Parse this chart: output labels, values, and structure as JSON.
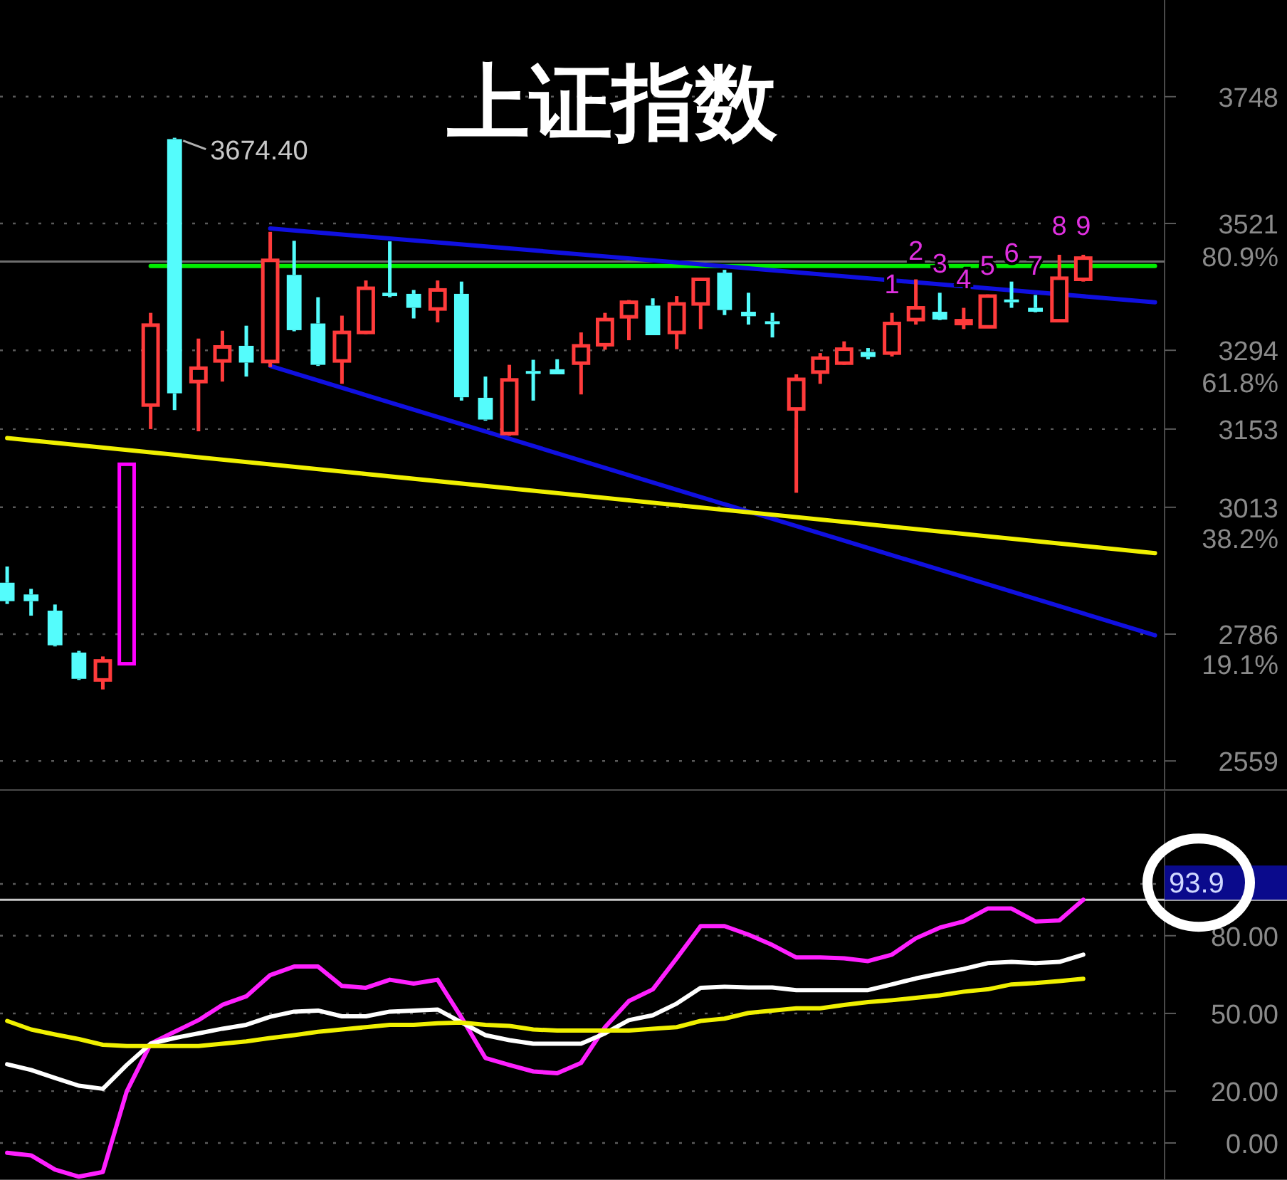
{
  "chart_data": [
    {
      "type": "candlestick",
      "title": "上证指数",
      "categories": [
        null,
        null,
        null,
        null,
        null,
        null,
        null,
        null,
        null,
        null,
        null,
        null,
        null,
        null,
        null,
        null,
        null,
        null,
        null,
        null,
        null,
        null,
        null,
        null,
        null,
        null,
        null,
        null,
        null,
        null,
        null,
        null,
        null,
        null,
        null,
        null,
        null,
        null,
        null,
        null,
        null,
        null,
        null,
        null,
        null,
        null,
        null,
        null,
        null
      ],
      "ohlc": [
        [
          2878,
          2907,
          2840,
          2845
        ],
        [
          2857,
          2867,
          2819,
          2845
        ],
        [
          2828,
          2839,
          2764,
          2766
        ],
        [
          2753,
          2756,
          2704,
          2706
        ],
        [
          2704,
          2746,
          2687,
          2738
        ],
        [
          2733,
          3090,
          2733,
          3090
        ],
        [
          3196,
          3361,
          3153,
          3339
        ],
        [
          3672,
          3674.4,
          3187,
          3217
        ],
        [
          3238,
          3315,
          3149,
          3262
        ],
        [
          3275,
          3329,
          3238,
          3300
        ],
        [
          3302,
          3338,
          3247,
          3272
        ],
        [
          3274,
          3506,
          3264,
          3455
        ],
        [
          3429,
          3490,
          3328,
          3330
        ],
        [
          3342,
          3389,
          3266,
          3268
        ],
        [
          3275,
          3356,
          3234,
          3326
        ],
        [
          3326,
          3419,
          3323,
          3405
        ],
        [
          3397,
          3489,
          3389,
          3391
        ],
        [
          3395,
          3402,
          3351,
          3370
        ],
        [
          3368,
          3419,
          3344,
          3402
        ],
        [
          3395,
          3417,
          3204,
          3210
        ],
        [
          3209,
          3247,
          3168,
          3170
        ],
        [
          3145,
          3268,
          3141,
          3241
        ],
        [
          3257,
          3277,
          3204,
          3254
        ],
        [
          3260,
          3278,
          3251,
          3251
        ],
        [
          3271,
          3326,
          3215,
          3302
        ],
        [
          3304,
          3361,
          3295,
          3349
        ],
        [
          3354,
          3384,
          3312,
          3380
        ],
        [
          3374,
          3387,
          3321,
          3321
        ],
        [
          3326,
          3391,
          3296,
          3377
        ],
        [
          3377,
          3422,
          3332,
          3421
        ],
        [
          3433,
          3438,
          3357,
          3366
        ],
        [
          3363,
          3397,
          3340,
          3355
        ],
        [
          3346,
          3361,
          3317,
          3342
        ],
        [
          3189,
          3251,
          3039,
          3242
        ],
        [
          3255,
          3289,
          3234,
          3280
        ],
        [
          3271,
          3310,
          3268,
          3296
        ],
        [
          3291,
          3298,
          3278,
          3282
        ],
        [
          3289,
          3361,
          3283,
          3342
        ],
        [
          3349,
          3421,
          3340,
          3370
        ],
        [
          3363,
          3397,
          3348,
          3349
        ],
        [
          3344,
          3370,
          3332,
          3347
        ],
        [
          3336,
          3394,
          3335,
          3391
        ],
        [
          3385,
          3417,
          3370,
          3380
        ],
        [
          3370,
          3393,
          3362,
          3363
        ],
        [
          3347,
          3465,
          3344,
          3423
        ],
        [
          3421,
          3465,
          3417,
          3459
        ],
        null,
        null,
        null
      ],
      "colors": [
        "#54fcfc",
        "#54fcfc",
        "#54fcfc",
        "#54fcfc",
        "#ff3b3b",
        "#ff00ff",
        "#ff3b3b",
        "#54fcfc",
        "#ff3b3b",
        "#ff3b3b",
        "#54fcfc",
        "#ff3b3b",
        "#54fcfc",
        "#54fcfc",
        "#ff3b3b",
        "#ff3b3b",
        "#54fcfc",
        "#54fcfc",
        "#ff3b3b",
        "#54fcfc",
        "#54fcfc",
        "#ff3b3b",
        "#54fcfc",
        "#54fcfc",
        "#ff3b3b",
        "#ff3b3b",
        "#ff3b3b",
        "#54fcfc",
        "#ff3b3b",
        "#ff3b3b",
        "#54fcfc",
        "#54fcfc",
        "#54fcfc",
        "#ff3b3b",
        "#ff3b3b",
        "#ff3b3b",
        "#54fcfc",
        "#ff3b3b",
        "#ff3b3b",
        "#54fcfc",
        "#ff3b3b",
        "#ff3b3b",
        "#54fcfc",
        "#54fcfc",
        "#ff3b3b",
        "#ff3b3b",
        null,
        null,
        null
      ],
      "value_labels": [
        null,
        null,
        null,
        null,
        null,
        null,
        null,
        null,
        null,
        null,
        null,
        null,
        null,
        null,
        null,
        null,
        null,
        null,
        null,
        null,
        null,
        null,
        null,
        null,
        null,
        null,
        null,
        null,
        null,
        null,
        null,
        null,
        null,
        null,
        null,
        null,
        null,
        "1",
        "2",
        "3",
        "4",
        "5",
        "6",
        "7",
        "8",
        "9",
        null,
        null,
        null
      ],
      "series": [
        {
          "type": "line",
          "color": "#00ee00",
          "values": [
            null,
            null,
            null,
            null,
            null,
            null,
            3445,
            null,
            null,
            null,
            null,
            null,
            null,
            null,
            null,
            null,
            null,
            null,
            null,
            null,
            null,
            null,
            null,
            null,
            null,
            null,
            null,
            null,
            null,
            null,
            null,
            null,
            null,
            null,
            null,
            null,
            null,
            null,
            null,
            null,
            null,
            null,
            null,
            null,
            null,
            null,
            null,
            null,
            3445
          ]
        },
        {
          "type": "line",
          "color": "#1010e0",
          "values": [
            null,
            null,
            null,
            null,
            null,
            null,
            null,
            null,
            null,
            null,
            null,
            3512,
            null,
            null,
            null,
            null,
            null,
            null,
            null,
            null,
            null,
            null,
            null,
            null,
            null,
            null,
            null,
            null,
            null,
            null,
            null,
            null,
            null,
            null,
            null,
            null,
            null,
            null,
            null,
            null,
            null,
            null,
            null,
            null,
            null,
            null,
            null,
            null,
            3380
          ]
        },
        {
          "type": "line",
          "color": "#1010e0",
          "values": [
            null,
            null,
            null,
            null,
            null,
            null,
            null,
            null,
            null,
            null,
            null,
            3266,
            null,
            null,
            null,
            null,
            null,
            null,
            null,
            null,
            null,
            null,
            null,
            null,
            null,
            null,
            null,
            null,
            null,
            null,
            null,
            null,
            null,
            null,
            null,
            null,
            null,
            null,
            null,
            null,
            null,
            null,
            null,
            null,
            null,
            null,
            null,
            null,
            2784
          ]
        },
        {
          "type": "line",
          "color": "#f0f000",
          "values": [
            3137,
            null,
            null,
            null,
            null,
            null,
            null,
            null,
            null,
            null,
            null,
            null,
            null,
            null,
            null,
            null,
            null,
            null,
            null,
            null,
            null,
            null,
            null,
            null,
            null,
            null,
            null,
            null,
            null,
            null,
            null,
            null,
            null,
            null,
            null,
            null,
            null,
            null,
            null,
            null,
            null,
            null,
            null,
            null,
            null,
            null,
            null,
            null,
            2931
          ]
        }
      ],
      "ylim": [
        2507,
        3921
      ],
      "yticks": [
        3748,
        3521,
        3294,
        3153,
        3013,
        2786,
        2559
      ],
      "y2lim": [
        0,
        119.7
      ],
      "y2ticks": [
        {
          "value": 80.9,
          "label": "80.9%"
        },
        {
          "value": 61.8,
          "label": "61.8%"
        },
        {
          "value": 38.2,
          "label": "38.2%"
        },
        {
          "value": 19.1,
          "label": "19.1%"
        }
      ],
      "grid": "y",
      "ref_lines": [
        {
          "axis": "y",
          "value": 3453,
          "color": "#6e6e6e"
        }
      ],
      "annotations": [
        "3674.40"
      ]
    },
    {
      "type": "line",
      "categories": [
        null,
        null,
        null,
        null,
        null,
        null,
        null,
        null,
        null,
        null,
        null,
        null,
        null,
        null,
        null,
        null,
        null,
        null,
        null,
        null,
        null,
        null,
        null,
        null,
        null,
        null,
        null,
        null,
        null,
        null,
        null,
        null,
        null,
        null,
        null,
        null,
        null,
        null,
        null,
        null,
        null,
        null,
        null,
        null,
        null,
        null,
        null,
        null,
        null
      ],
      "series": [
        {
          "color": "#ff20ff",
          "values": [
            -3.8,
            -4.8,
            -10.3,
            -13,
            -11.2,
            19.9,
            38.3,
            42.9,
            47.4,
            53.3,
            56.6,
            64.8,
            68.1,
            68.1,
            60.6,
            59.9,
            63,
            61.5,
            63,
            48.4,
            32.8,
            30.1,
            27.6,
            26.9,
            30.9,
            44.7,
            54.8,
            59.3,
            71.3,
            83.7,
            83.7,
            80.4,
            76.4,
            71.6,
            71.6,
            71.3,
            70.2,
            72.7,
            79,
            83.1,
            85.5,
            90.5,
            90.5,
            85.5,
            85.9,
            93.9,
            null,
            null,
            null
          ]
        },
        {
          "color": "#ffffff",
          "values": [
            30.4,
            28.2,
            25.1,
            22.1,
            20.9,
            30.1,
            38.3,
            40.5,
            42.3,
            44.1,
            45.6,
            48.7,
            50.7,
            51.1,
            48.9,
            48.9,
            50.7,
            51.1,
            51.5,
            46.5,
            41.6,
            39.7,
            38.3,
            38.3,
            38.3,
            42.3,
            47.4,
            49.3,
            53.8,
            59.9,
            60.3,
            60,
            60,
            59,
            59,
            59,
            59,
            61.2,
            63.5,
            65.4,
            67.2,
            69.4,
            69.9,
            69.4,
            69.9,
            72.7,
            null,
            null,
            null
          ]
        },
        {
          "color": "#f0f000",
          "values": [
            47.1,
            43.8,
            41.9,
            40.1,
            37.9,
            37.4,
            37.4,
            37.4,
            37.4,
            38.3,
            39.2,
            40.5,
            41.6,
            42.9,
            43.8,
            44.7,
            45.6,
            45.6,
            46.2,
            46.5,
            45.6,
            45.2,
            43.8,
            43.4,
            43.4,
            43.4,
            43.4,
            44.1,
            44.7,
            47.1,
            48,
            50.2,
            51.1,
            52,
            52,
            53.3,
            54.4,
            55.1,
            56,
            57,
            58.4,
            59.3,
            61.2,
            61.7,
            62.5,
            63.4,
            null,
            null,
            null
          ]
        }
      ],
      "ylim": [
        -14.3,
        135.7
      ],
      "yticks": [
        {
          "value": 100,
          "label": null
        },
        {
          "value": 80,
          "label": "80.00"
        },
        {
          "value": 50,
          "label": "50.00"
        },
        {
          "value": 20,
          "label": "20.00"
        },
        {
          "value": 0,
          "label": "0.00"
        }
      ],
      "grid": "y",
      "ref_lines": [
        {
          "axis": "y",
          "value": 93.9,
          "label": "93.9",
          "color": "#c8c8c8"
        }
      ]
    }
  ]
}
